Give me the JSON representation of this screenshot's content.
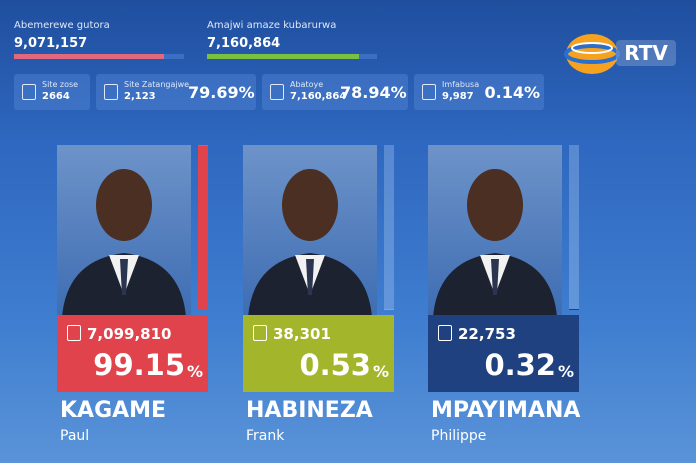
{
  "header": {
    "registered_label": "Abemerewe gutora",
    "registered": "9,071,157",
    "counted_label": "Amajwi amaze kubarurwa",
    "counted": "7,160,864",
    "logo": "RTV"
  },
  "stats": [
    {
      "label": "Site zose",
      "count": "2664"
    },
    {
      "label": "Site Zatangajwe",
      "count": "2,123",
      "percent": "79.69%"
    },
    {
      "label": "Abatoye",
      "count": "7,160,864",
      "percent": "78.94%"
    },
    {
      "label": "Imfabusa",
      "count": "9,987",
      "percent": "0.14%"
    }
  ],
  "candidates": [
    {
      "surname": "KAGAME",
      "first_name": "Paul",
      "votes": "7,099,810",
      "share": 99.15,
      "share_unit": "%",
      "color": "#e0434c"
    },
    {
      "surname": "HABINEZA",
      "first_name": "Frank",
      "votes": "38,301",
      "share": 0.53,
      "share_unit": "%",
      "color": "#a3b52a"
    },
    {
      "surname": "MPAYIMANA",
      "first_name": "Philippe",
      "votes": "22,753",
      "share": 0.32,
      "share_unit": "%",
      "color": "#1f417f"
    }
  ]
}
